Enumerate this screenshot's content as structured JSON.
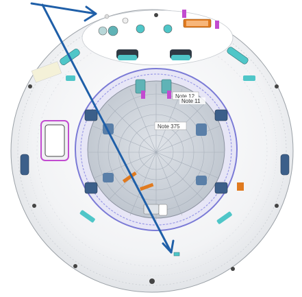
{
  "diagram": {
    "notes": [
      {
        "id": "note-12",
        "text": "Note 12"
      },
      {
        "id": "note-11",
        "text": "Note 11"
      },
      {
        "id": "note-375",
        "text": "Note 375"
      }
    ],
    "colors": {
      "arrow": "#1f5fa8",
      "teal_hardware": "#4fc6c8",
      "inner_ring": "#7a7ad6",
      "purple_accent": "#c24bd0",
      "orange_bracket": "#e07a1f",
      "floor_grey": "#cfd4da",
      "dark_blue_part": "#3c5f8a"
    },
    "icons": {
      "arrow_1": "pointer-arrow-icon",
      "arrow_2": "pointer-arrow-icon"
    }
  }
}
